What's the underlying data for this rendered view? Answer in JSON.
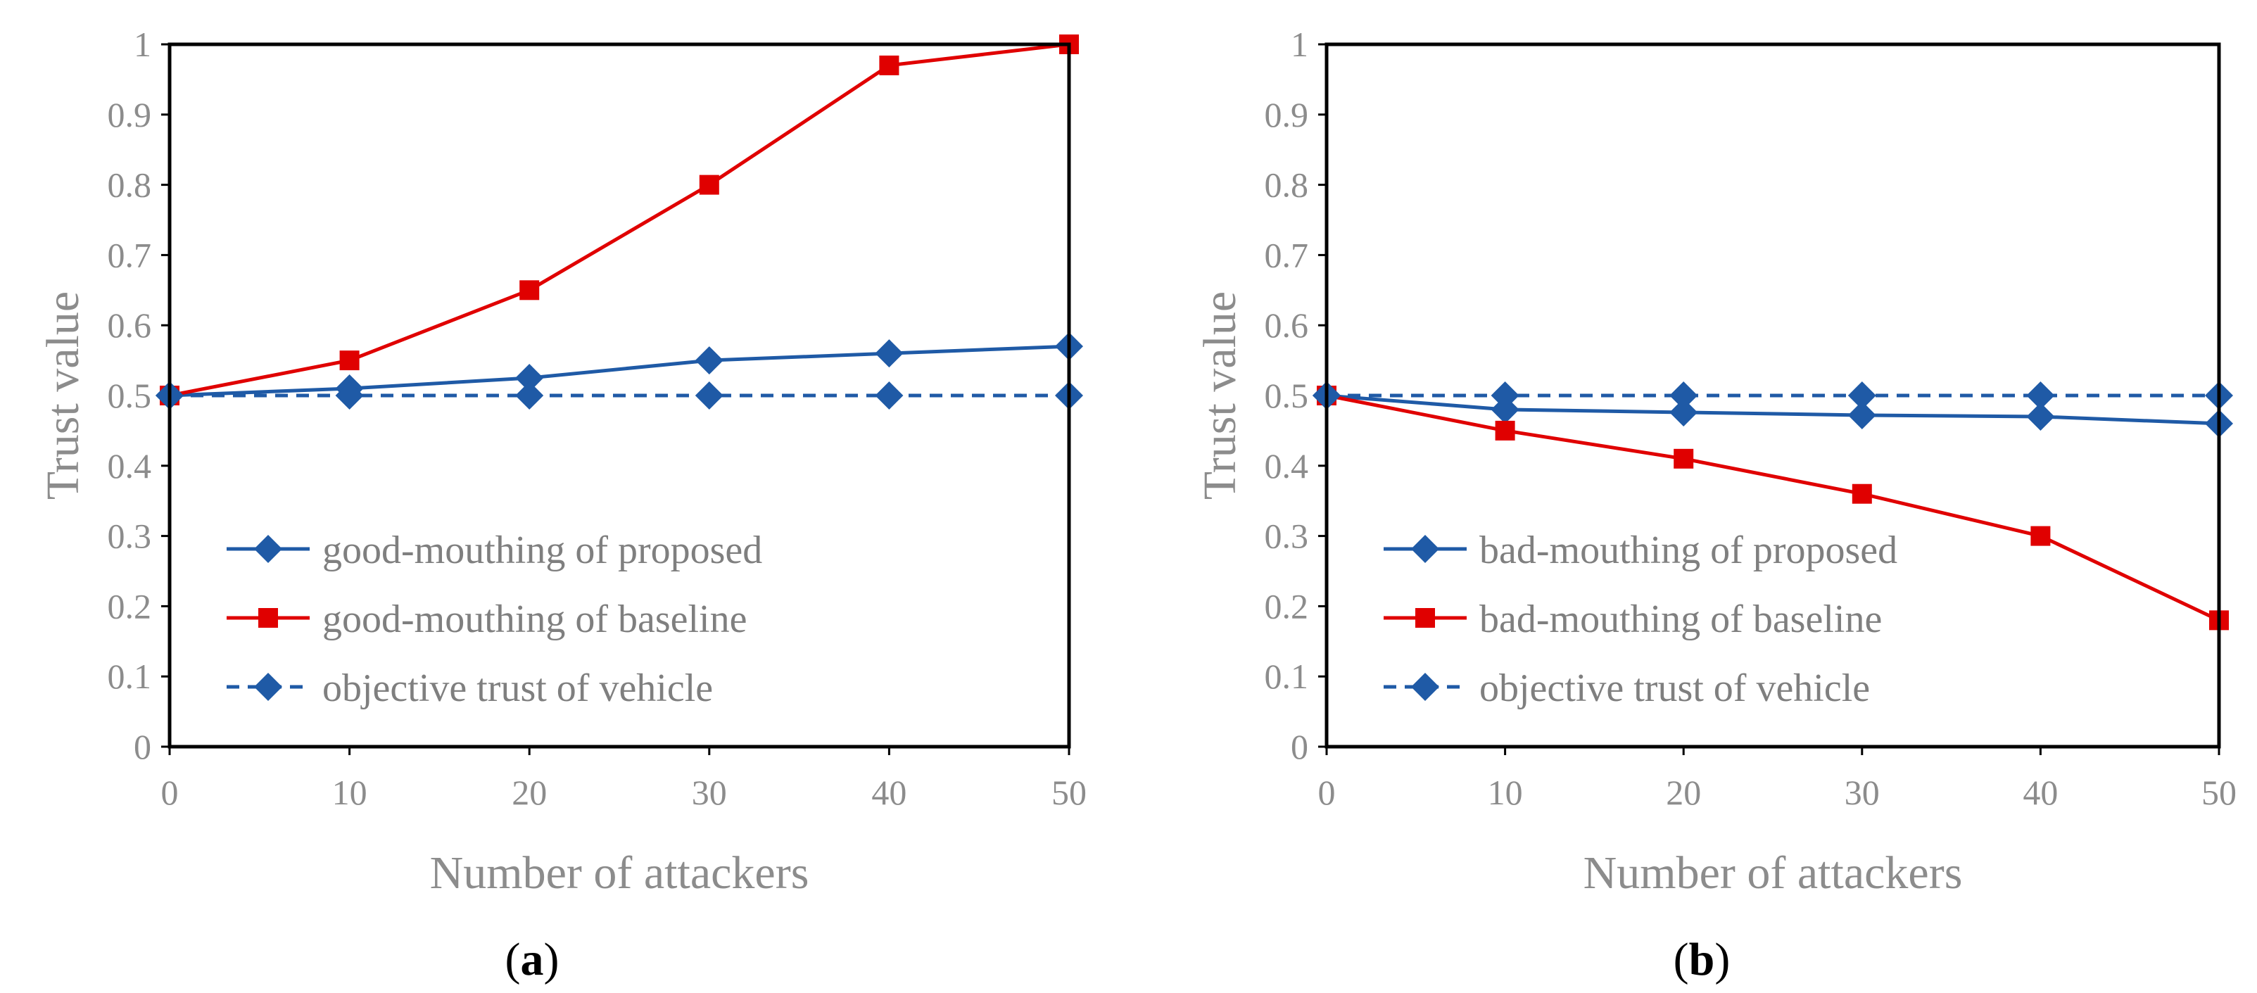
{
  "colors": {
    "proposed": "#1f5aa6",
    "baseline": "#e00000",
    "objective": "#1f5aa6",
    "text": "#8c8c8c"
  },
  "chart_data": [
    {
      "panel_label": "(a)",
      "type": "line",
      "xlabel": "Number of attackers",
      "ylabel": "Trust value",
      "x": [
        0,
        10,
        20,
        30,
        40,
        50
      ],
      "xlim": [
        0,
        50
      ],
      "ylim": [
        0,
        1
      ],
      "xticks": [
        "0",
        "10",
        "20",
        "30",
        "40",
        "50"
      ],
      "yticks": [
        "0",
        "0.1",
        "0.2",
        "0.3",
        "0.4",
        "0.5",
        "0.6",
        "0.7",
        "0.8",
        "0.9",
        "1"
      ],
      "grid": false,
      "legend_position": "bottom-left",
      "series": [
        {
          "name": "good-mouthing of proposed",
          "values": [
            0.5,
            0.51,
            0.525,
            0.55,
            0.56,
            0.57
          ],
          "marker": "diamond",
          "style": "solid",
          "color_key": "proposed"
        },
        {
          "name": "good-mouthing of baseline",
          "values": [
            0.5,
            0.55,
            0.65,
            0.8,
            0.97,
            1.0
          ],
          "marker": "square",
          "style": "solid",
          "color_key": "baseline"
        },
        {
          "name": "objective trust of vehicle",
          "values": [
            0.5,
            0.5,
            0.5,
            0.5,
            0.5,
            0.5
          ],
          "marker": "diamond",
          "style": "dashed",
          "color_key": "objective"
        }
      ]
    },
    {
      "panel_label": "(b)",
      "type": "line",
      "xlabel": "Number of attackers",
      "ylabel": "Trust value",
      "x": [
        0,
        10,
        20,
        30,
        40,
        50
      ],
      "xlim": [
        0,
        50
      ],
      "ylim": [
        0,
        1
      ],
      "xticks": [
        "0",
        "10",
        "20",
        "30",
        "40",
        "50"
      ],
      "yticks": [
        "0",
        "0.1",
        "0.2",
        "0.3",
        "0.4",
        "0.5",
        "0.6",
        "0.7",
        "0.8",
        "0.9",
        "1"
      ],
      "grid": false,
      "legend_position": "bottom-left",
      "series": [
        {
          "name": "bad-mouthing of proposed",
          "values": [
            0.5,
            0.48,
            0.476,
            0.472,
            0.47,
            0.46
          ],
          "marker": "diamond",
          "style": "solid",
          "color_key": "proposed"
        },
        {
          "name": "bad-mouthing of baseline",
          "values": [
            0.5,
            0.45,
            0.41,
            0.36,
            0.3,
            0.18
          ],
          "marker": "square",
          "style": "solid",
          "color_key": "baseline"
        },
        {
          "name": "objective trust of vehicle",
          "values": [
            0.5,
            0.5,
            0.5,
            0.5,
            0.5,
            0.5
          ],
          "marker": "diamond",
          "style": "dashed",
          "color_key": "objective"
        }
      ]
    }
  ]
}
